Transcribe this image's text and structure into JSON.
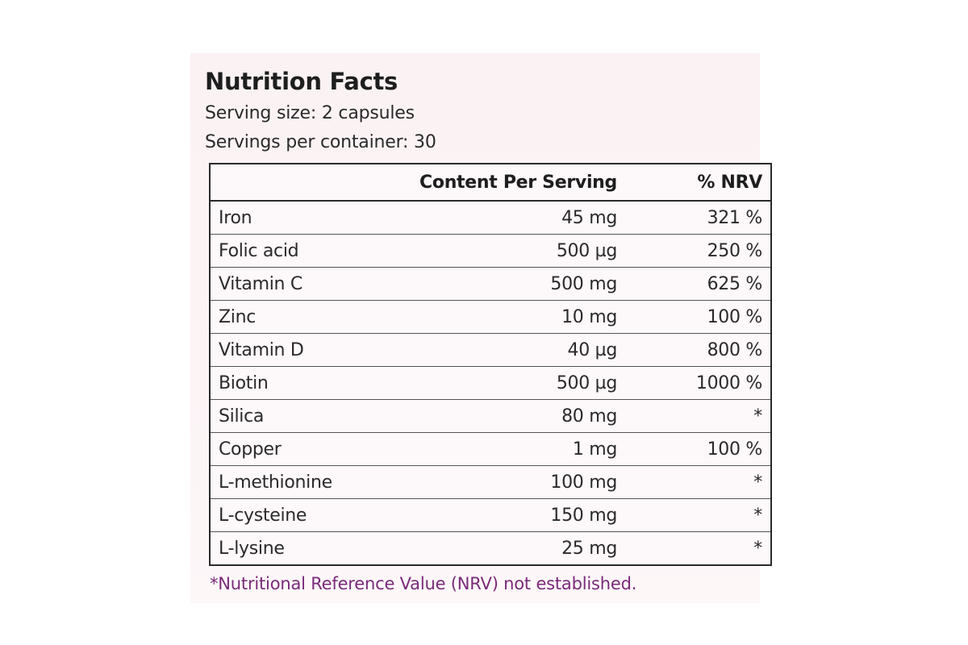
{
  "label": {
    "title": "Nutrition Facts",
    "serving_size": "Serving size: 2 capsules",
    "servings_per_container": "Servings per container: 30",
    "table": {
      "headers": {
        "name": "",
        "content": "Content Per Serving",
        "nrv": "% NRV"
      },
      "rows": [
        {
          "name": "Iron",
          "content": "45 mg",
          "nrv": "321 %"
        },
        {
          "name": "Folic acid",
          "content": "500 µg",
          "nrv": "250 %"
        },
        {
          "name": "Vitamin C",
          "content": "500 mg",
          "nrv": "625 %"
        },
        {
          "name": "Zinc",
          "content": "10 mg",
          "nrv": "100 %"
        },
        {
          "name": "Vitamin D",
          "content": "40  µg",
          "nrv": "800 %"
        },
        {
          "name": "Biotin",
          "content": "500 µg",
          "nrv": "1000 %"
        },
        {
          "name": "Silica",
          "content": "80 mg",
          "nrv": "*"
        },
        {
          "name": "Copper",
          "content": "1 mg",
          "nrv": "100 %"
        },
        {
          "name": "L-methionine",
          "content": "100 mg",
          "nrv": "*"
        },
        {
          "name": "L-cysteine",
          "content": "150 mg",
          "nrv": "*"
        },
        {
          "name": "L-lysine",
          "content": "25 mg",
          "nrv": "*"
        }
      ]
    },
    "footnote": "*Nutritional Reference Value (NRV) not established.",
    "colors": {
      "background": "#fbf2f3",
      "text": "#222222",
      "footnote": "#7a2a7a",
      "border": "#2a2a2a"
    }
  }
}
